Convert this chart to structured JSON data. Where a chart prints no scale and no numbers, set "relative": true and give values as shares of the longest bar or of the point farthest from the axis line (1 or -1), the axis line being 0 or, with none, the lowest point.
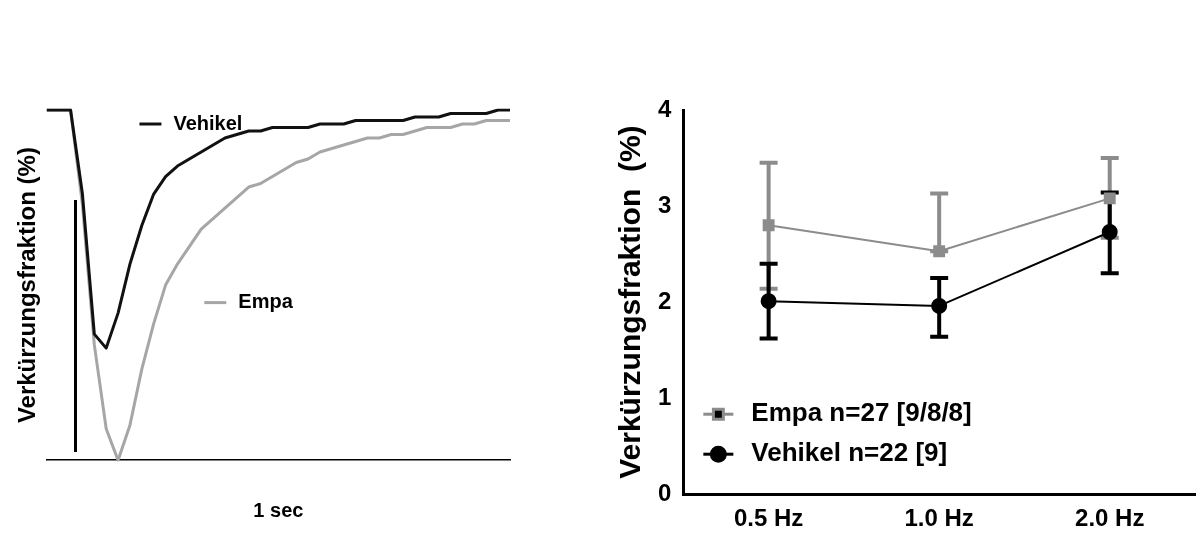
{
  "chart_data": [
    {
      "type": "line",
      "relative": true,
      "ylabel": "Verkürzungsfraktion (%)",
      "xlabel": "1 sec",
      "marker": "none",
      "line_style": "solid",
      "grid": false,
      "legend": "top",
      "categories": [
        null,
        null,
        null,
        null,
        null,
        null,
        null,
        null,
        null,
        null,
        null,
        null,
        null,
        null,
        null,
        null,
        null,
        null,
        null,
        null,
        null,
        null,
        null,
        null,
        null,
        null,
        null,
        null,
        null,
        null,
        null,
        null,
        null,
        null,
        null,
        null,
        null,
        null,
        null,
        null
      ],
      "series": [
        {
          "name": "Vehikel",
          "color": "#111111",
          "values": [
            1,
            1,
            1,
            0.76,
            0.36,
            0.32,
            0.42,
            0.56,
            0.67,
            0.76,
            0.81,
            0.84,
            0.86,
            0.88,
            0.9,
            0.92,
            0.93,
            0.94,
            0.94,
            0.95,
            0.95,
            0.95,
            0.95,
            0.96,
            0.96,
            0.96,
            0.97,
            0.97,
            0.97,
            0.97,
            0.97,
            0.98,
            0.98,
            0.98,
            0.99,
            0.99,
            0.99,
            0.99,
            1,
            1
          ]
        },
        {
          "name": "Empa",
          "color": "#a6a6a6",
          "values": [
            1,
            1,
            1,
            0.73,
            0.33,
            0.09,
            0,
            0.1,
            0.26,
            0.39,
            0.5,
            0.56,
            0.61,
            0.66,
            0.69,
            0.72,
            0.75,
            0.78,
            0.79,
            0.81,
            0.83,
            0.85,
            0.86,
            0.88,
            0.89,
            0.9,
            0.91,
            0.92,
            0.92,
            0.93,
            0.93,
            0.94,
            0.95,
            0.95,
            0.95,
            0.96,
            0.96,
            0.97,
            0.97,
            0.97
          ]
        }
      ]
    },
    {
      "type": "line",
      "ylabel": "Verkürzungsfraktion  (%)",
      "categories": [
        "0.5 Hz",
        "1.0 Hz",
        "2.0 Hz"
      ],
      "ylim": [
        0,
        4
      ],
      "yticks": [
        0,
        1,
        2,
        3,
        4
      ],
      "grid": false,
      "legend": "bottom left",
      "line_style": "solid",
      "series": [
        {
          "name": "Empa n=27 [9/8/8]",
          "color": "#8c8c8c",
          "marker": "square",
          "values": [
            2.8,
            2.53,
            3.08
          ],
          "errors": [
            [
              2.14,
              3.45
            ],
            [
              2.53,
              3.13
            ],
            [
              2.67,
              3.5
            ]
          ]
        },
        {
          "name": "Vehikel n=22 [9]",
          "color": "#000000",
          "marker": "circle",
          "values": [
            2.01,
            1.96,
            2.73
          ],
          "errors": [
            [
              1.62,
              2.4
            ],
            [
              1.64,
              2.25
            ],
            [
              2.3,
              3.14
            ]
          ]
        }
      ]
    }
  ]
}
